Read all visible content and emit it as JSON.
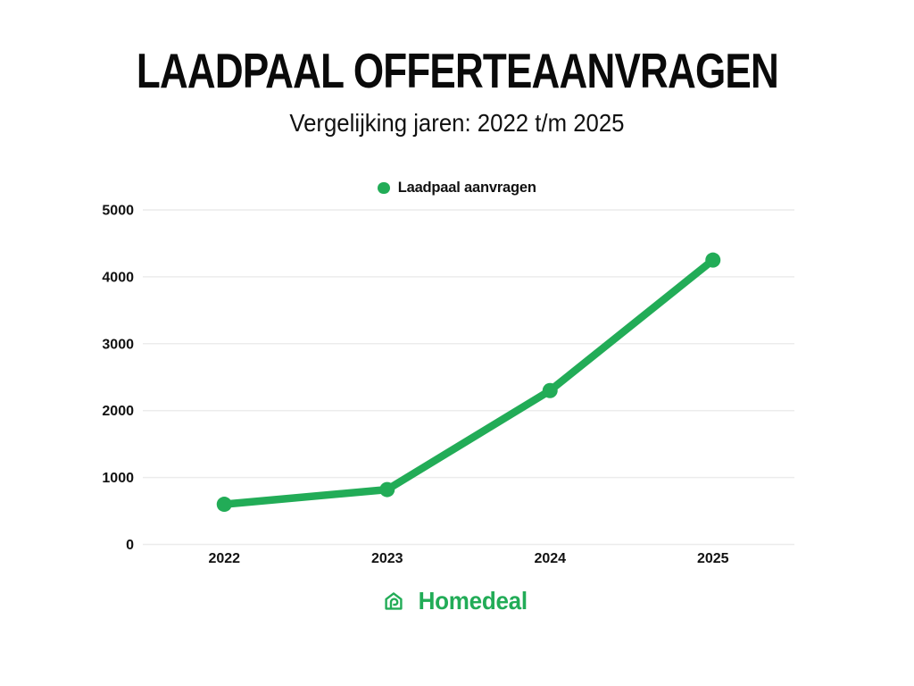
{
  "header": {
    "title": "LAADPAAL OFFERTEAANVRAGEN",
    "subtitle": "Vergelijking jaren: 2022 t/m 2025"
  },
  "legend": {
    "label": "Laadpaal aanvragen"
  },
  "chart_data": {
    "type": "line",
    "categories": [
      "2022",
      "2023",
      "2024",
      "2025"
    ],
    "series": [
      {
        "name": "Laadpaal aanvragen",
        "values": [
          600,
          820,
          2300,
          4250
        ]
      }
    ],
    "title": "LAADPAAL OFFERTEAANVRAGEN",
    "subtitle": "Vergelijking jaren: 2022 t/m 2025",
    "xlabel": "",
    "ylabel": "",
    "ylim": [
      0,
      5000
    ],
    "yticks": [
      0,
      1000,
      2000,
      3000,
      4000,
      5000
    ],
    "grid": "horizontal",
    "legend_position": "top-center"
  },
  "colors": {
    "accent_green": "#22ac57",
    "grid": "#ececec",
    "text": "#111111"
  },
  "footer": {
    "brand": "Homedeal"
  }
}
